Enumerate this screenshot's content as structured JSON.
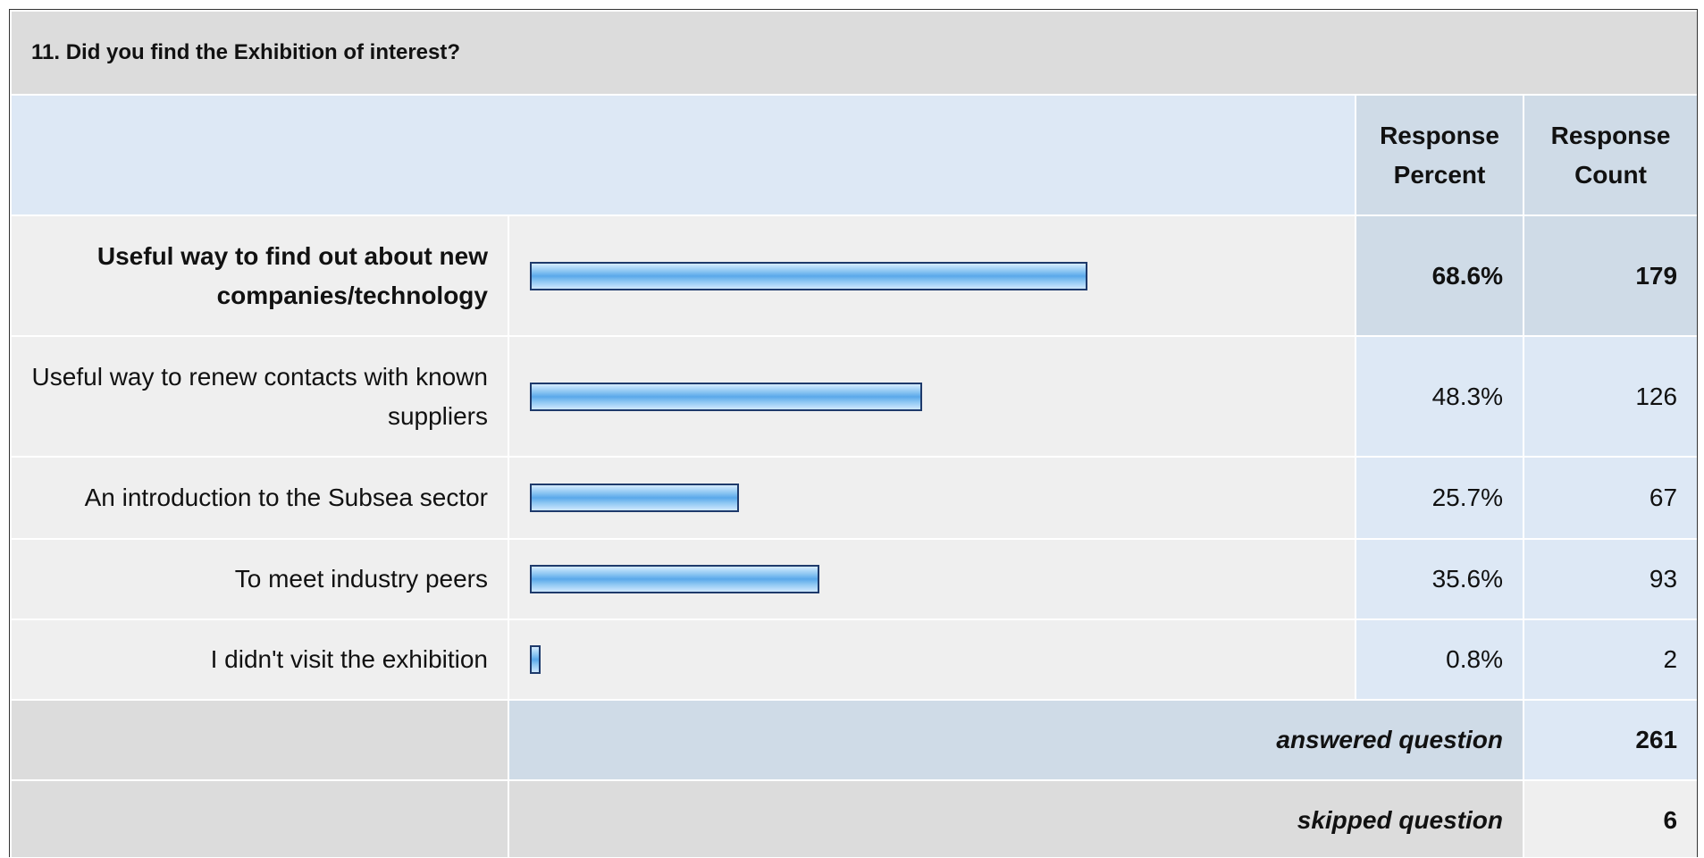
{
  "header": {
    "title": "11. Did you find the Exhibition of interest?",
    "percent_header": "Response Percent",
    "count_header": "Response Count"
  },
  "table": {
    "rows": [
      {
        "label": "Useful way to find out about new companies/technology",
        "percent": 68.6,
        "percent_label": "68.6%",
        "count": 179
      },
      {
        "label": "Useful way to renew contacts with known suppliers",
        "percent": 48.3,
        "percent_label": "48.3%",
        "count": 126
      },
      {
        "label": "An introduction to the Subsea sector",
        "percent": 25.7,
        "percent_label": "25.7%",
        "count": 67
      },
      {
        "label": "To meet industry peers",
        "percent": 35.6,
        "percent_label": "35.6%",
        "count": 93
      },
      {
        "label": "I didn't visit the exhibition",
        "percent": 0.8,
        "percent_label": "0.8%",
        "count": 2
      }
    ]
  },
  "footer": {
    "answered_label": "answered question",
    "answered": 261,
    "skipped_label": "skipped question",
    "skipped": 6
  }
}
